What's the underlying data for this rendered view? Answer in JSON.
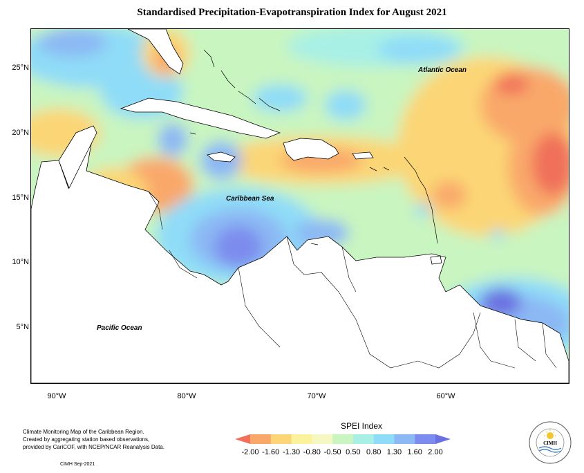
{
  "title": "Standardised Precipitation-Evapotranspiration Index for August 2021",
  "map": {
    "ocean_labels": [
      "Atlantic Ocean",
      "Caribbean Sea",
      "Pacific Ocean"
    ],
    "lat_labels": [
      "25°N",
      "20°N",
      "15°N",
      "10°N",
      "5°N"
    ],
    "lon_labels": [
      "90°W",
      "80°W",
      "70°W",
      "60°W"
    ]
  },
  "legend": {
    "title": "SPEI Index",
    "ticks": [
      "-2.00",
      "-1.60",
      "-1.30",
      "-0.80",
      "-0.50",
      "0.50",
      "0.80",
      "1.30",
      "1.60",
      "2.00"
    ],
    "colors": [
      "#f0705a",
      "#f9a86a",
      "#fcd676",
      "#fdf29c",
      "#f6f8c4",
      "#c9f5c0",
      "#a8f0e6",
      "#8fdcf8",
      "#8cb8f4",
      "#7c8cee",
      "#6a70e0"
    ]
  },
  "footer": {
    "lines": [
      "Climate Monitoring Map of the Caribbean Region.",
      "Created by aggregating station based observations,",
      "provided by CariCOF, with NCEP/NCAR Reanalysis Data."
    ],
    "date": "CIMH  Sep-2021"
  },
  "logo": {
    "name": "CIMH"
  }
}
